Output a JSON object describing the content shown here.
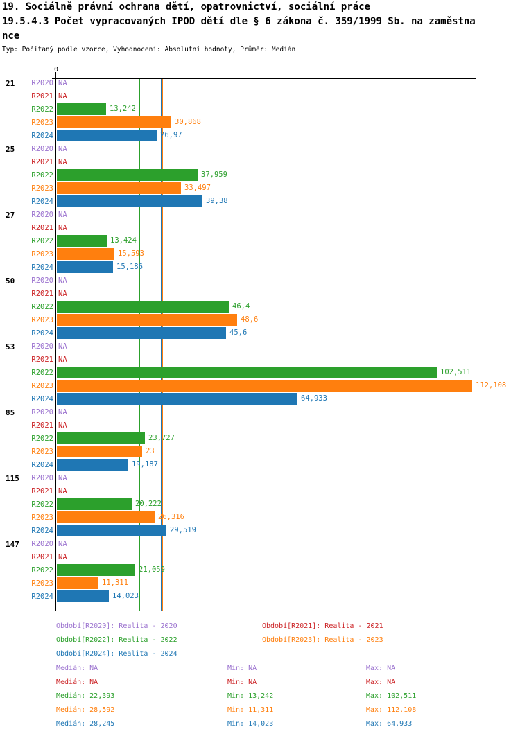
{
  "title": {
    "line1": "19. Sociálně právní ochrana dětí, opatrovnictví, sociální práce",
    "line2": "19.5.4.3 Počet vypracovaných IPOD dětí dle § 6 zákona č. 359/1999 Sb. na zaměstna",
    "line3": "nce",
    "meta": "Typ: Počítaný podle vzorce, Vyhodnocení: Absolutní hodnoty, Průměr: Medián"
  },
  "colors": {
    "R2020": "#9b72cf",
    "R2021": "#cc2427",
    "R2022": "#2ca02c",
    "R2023": "#ff7f0e",
    "R2024": "#1f77b4",
    "axis": "#000000"
  },
  "chart_data": {
    "type": "bar",
    "orientation": "horizontal",
    "x_axis_zero_label": "0",
    "na_text": "NA",
    "grid": "off",
    "categories": [
      "21",
      "25",
      "27",
      "50",
      "53",
      "85",
      "115",
      "147"
    ],
    "series": [
      {
        "name": "R2020",
        "values": [
          "NA",
          "NA",
          "NA",
          "NA",
          "NA",
          "NA",
          "NA",
          "NA"
        ]
      },
      {
        "name": "R2021",
        "values": [
          "NA",
          "NA",
          "NA",
          "NA",
          "NA",
          "NA",
          "NA",
          "NA"
        ]
      },
      {
        "name": "R2022",
        "values": [
          "13,242",
          "37,959",
          "13,424",
          "46,4",
          "102,511",
          "23,727",
          "20,222",
          "21,059"
        ]
      },
      {
        "name": "R2023",
        "values": [
          "30,868",
          "33,497",
          "15,593",
          "48,6",
          "112,108",
          "23",
          "26,316",
          "11,311"
        ]
      },
      {
        "name": "R2024",
        "values": [
          "26,97",
          "39,38",
          "15,186",
          "45,6",
          "64,933",
          "19,187",
          "29,519",
          "14,023"
        ]
      }
    ],
    "median_lines": [
      {
        "series": "R2022",
        "value": "22,393"
      },
      {
        "series": "R2024",
        "value": "28,245"
      },
      {
        "series": "R2023",
        "value": "28,592"
      }
    ],
    "x_range_max": "112,108"
  },
  "legend": {
    "items": [
      {
        "series": "R2020",
        "label": "Období[R2020]: Realita - 2020"
      },
      {
        "series": "R2021",
        "label": "Období[R2021]: Realita - 2021"
      },
      {
        "series": "R2022",
        "label": "Období[R2022]: Realita - 2022"
      },
      {
        "series": "R2023",
        "label": "Období[R2023]: Realita - 2023"
      },
      {
        "series": "R2024",
        "label": "Období[R2024]: Realita - 2024"
      }
    ]
  },
  "stats": {
    "labels": {
      "median": "Medián",
      "min": "Min",
      "max": "Max"
    },
    "rows": [
      {
        "series": "R2020",
        "median": "NA",
        "min": "NA",
        "max": "NA"
      },
      {
        "series": "R2021",
        "median": "NA",
        "min": "NA",
        "max": "NA"
      },
      {
        "series": "R2022",
        "median": "22,393",
        "min": "13,242",
        "max": "102,511"
      },
      {
        "series": "R2023",
        "median": "28,592",
        "min": "11,311",
        "max": "112,108"
      },
      {
        "series": "R2024",
        "median": "28,245",
        "min": "14,023",
        "max": "64,933"
      }
    ]
  }
}
